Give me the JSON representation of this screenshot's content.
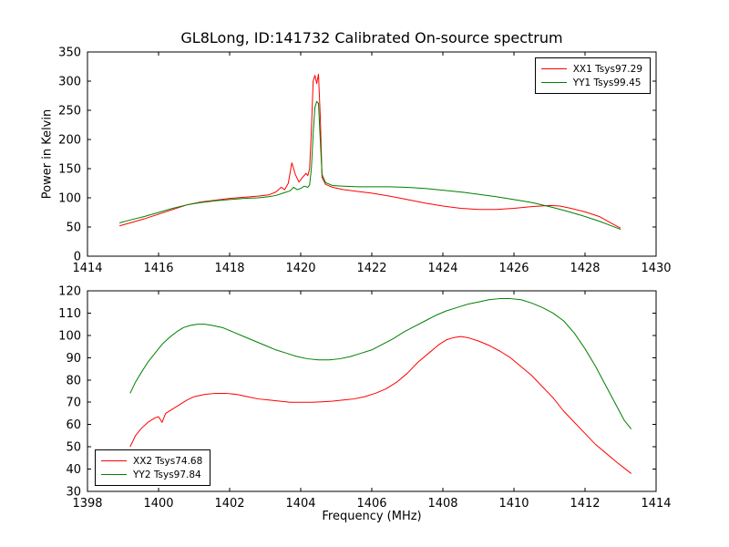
{
  "colors": {
    "series_red": "#ff0000",
    "series_green": "#008000",
    "axes": "#000000",
    "background": "#ffffff"
  },
  "chart_data": [
    {
      "type": "line",
      "title": "GL8Long, ID:141732 Calibrated On-source spectrum",
      "xlabel": "",
      "ylabel": "Power in Kelvin",
      "xlim": [
        1414,
        1430
      ],
      "ylim": [
        0,
        350
      ],
      "xticks": [
        1414,
        1416,
        1418,
        1420,
        1422,
        1424,
        1426,
        1428,
        1430
      ],
      "yticks": [
        0,
        50,
        100,
        150,
        200,
        250,
        300,
        350
      ],
      "grid": false,
      "legend_position": "upper right",
      "series": [
        {
          "name": "XX1 Tsys97.29",
          "color": "#ff0000",
          "x": [
            1414.9,
            1415.2,
            1415.6,
            1416.0,
            1416.4,
            1416.8,
            1417.2,
            1417.6,
            1418.0,
            1418.4,
            1418.8,
            1419.1,
            1419.3,
            1419.45,
            1419.55,
            1419.65,
            1419.75,
            1419.85,
            1419.95,
            1420.05,
            1420.15,
            1420.2,
            1420.25,
            1420.3,
            1420.35,
            1420.4,
            1420.45,
            1420.5,
            1420.55,
            1420.6,
            1420.7,
            1420.9,
            1421.2,
            1421.6,
            1422.0,
            1422.5,
            1423.0,
            1423.5,
            1424.0,
            1424.5,
            1425.0,
            1425.5,
            1426.0,
            1426.5,
            1427.0,
            1427.3,
            1427.6,
            1428.0,
            1428.4,
            1428.7,
            1429.0
          ],
          "y": [
            52,
            57,
            64,
            72,
            80,
            88,
            93,
            96,
            99,
            101,
            103,
            105,
            110,
            118,
            114,
            125,
            160,
            140,
            127,
            135,
            142,
            138,
            150,
            215,
            300,
            310,
            296,
            312,
            240,
            135,
            123,
            118,
            114,
            111,
            108,
            103,
            97,
            91,
            86,
            82,
            80,
            80,
            82,
            85,
            87,
            86,
            82,
            76,
            68,
            58,
            48
          ]
        },
        {
          "name": "YY1 Tsys99.45",
          "color": "#008000",
          "x": [
            1414.9,
            1415.2,
            1415.6,
            1416.0,
            1416.4,
            1416.8,
            1417.2,
            1417.6,
            1418.0,
            1418.4,
            1418.8,
            1419.1,
            1419.3,
            1419.5,
            1419.7,
            1419.8,
            1419.9,
            1420.0,
            1420.1,
            1420.2,
            1420.25,
            1420.3,
            1420.35,
            1420.4,
            1420.45,
            1420.5,
            1420.55,
            1420.6,
            1420.7,
            1420.9,
            1421.2,
            1421.6,
            1422.0,
            1422.5,
            1423.0,
            1423.5,
            1424.0,
            1424.5,
            1425.0,
            1425.5,
            1426.0,
            1426.5,
            1427.0,
            1427.5,
            1428.0,
            1428.4,
            1428.7,
            1429.0
          ],
          "y": [
            57,
            62,
            68,
            75,
            82,
            88,
            92,
            95,
            97,
            99,
            100,
            102,
            104,
            108,
            112,
            118,
            114,
            116,
            120,
            118,
            122,
            150,
            210,
            255,
            265,
            262,
            200,
            140,
            126,
            121,
            120,
            119,
            119,
            119,
            118,
            116,
            113,
            110,
            106,
            102,
            97,
            92,
            85,
            77,
            68,
            60,
            53,
            46
          ]
        }
      ]
    },
    {
      "type": "line",
      "title": "",
      "xlabel": "Frequency (MHz)",
      "ylabel": "",
      "xlim": [
        1398,
        1414
      ],
      "ylim": [
        30,
        120
      ],
      "xticks": [
        1398,
        1400,
        1402,
        1404,
        1406,
        1408,
        1410,
        1412,
        1414
      ],
      "yticks": [
        30,
        40,
        50,
        60,
        70,
        80,
        90,
        100,
        110,
        120
      ],
      "grid": false,
      "legend_position": "lower left",
      "series": [
        {
          "name": "XX2 Tsys74.68",
          "color": "#ff0000",
          "x": [
            1399.2,
            1399.35,
            1399.5,
            1399.7,
            1399.9,
            1400.0,
            1400.1,
            1400.2,
            1400.4,
            1400.6,
            1400.8,
            1401.0,
            1401.3,
            1401.6,
            1401.9,
            1402.2,
            1402.5,
            1402.8,
            1403.1,
            1403.4,
            1403.7,
            1404.0,
            1404.3,
            1404.6,
            1404.9,
            1405.2,
            1405.5,
            1405.8,
            1406.1,
            1406.4,
            1406.7,
            1407.0,
            1407.3,
            1407.6,
            1407.9,
            1408.1,
            1408.3,
            1408.5,
            1408.7,
            1409.0,
            1409.3,
            1409.6,
            1409.9,
            1410.2,
            1410.5,
            1410.8,
            1411.1,
            1411.4,
            1411.7,
            1412.0,
            1412.3,
            1412.6,
            1412.9,
            1413.1,
            1413.3
          ],
          "y": [
            50,
            55,
            58,
            61,
            63,
            63.5,
            61,
            65,
            67,
            69,
            71,
            72.5,
            73.5,
            74,
            74,
            73.5,
            72.5,
            71.5,
            71,
            70.5,
            70,
            70,
            70,
            70.2,
            70.5,
            71,
            71.5,
            72.5,
            74,
            76,
            79,
            83,
            88,
            92,
            96,
            98,
            99,
            99.5,
            99,
            97.5,
            95.5,
            93,
            90,
            86,
            82,
            77,
            72,
            66,
            61,
            56,
            51,
            47,
            43,
            40.5,
            38
          ]
        },
        {
          "name": "YY2 Tsys97.84",
          "color": "#008000",
          "x": [
            1399.2,
            1399.35,
            1399.5,
            1399.7,
            1399.9,
            1400.1,
            1400.3,
            1400.5,
            1400.7,
            1400.9,
            1401.1,
            1401.3,
            1401.5,
            1401.8,
            1402.1,
            1402.4,
            1402.7,
            1403.0,
            1403.3,
            1403.6,
            1403.9,
            1404.2,
            1404.5,
            1404.8,
            1405.1,
            1405.4,
            1405.7,
            1406.0,
            1406.3,
            1406.6,
            1406.9,
            1407.2,
            1407.5,
            1407.8,
            1408.1,
            1408.4,
            1408.7,
            1409.0,
            1409.3,
            1409.6,
            1409.9,
            1410.2,
            1410.5,
            1410.8,
            1411.1,
            1411.4,
            1411.7,
            1412.0,
            1412.3,
            1412.6,
            1412.9,
            1413.1,
            1413.3
          ],
          "y": [
            74,
            79,
            83,
            88,
            92,
            96,
            99,
            101.5,
            103.5,
            104.5,
            105,
            105,
            104.5,
            103.5,
            101.5,
            99.5,
            97.5,
            95.5,
            93.5,
            92,
            90.5,
            89.5,
            89,
            89,
            89.5,
            90.5,
            92,
            93.5,
            96,
            98.5,
            101.5,
            104,
            106.5,
            109,
            111,
            112.5,
            114,
            115,
            116,
            116.5,
            116.5,
            116,
            114.5,
            112.5,
            110,
            106.5,
            101,
            94,
            86,
            77,
            68,
            62,
            58
          ]
        }
      ]
    }
  ]
}
